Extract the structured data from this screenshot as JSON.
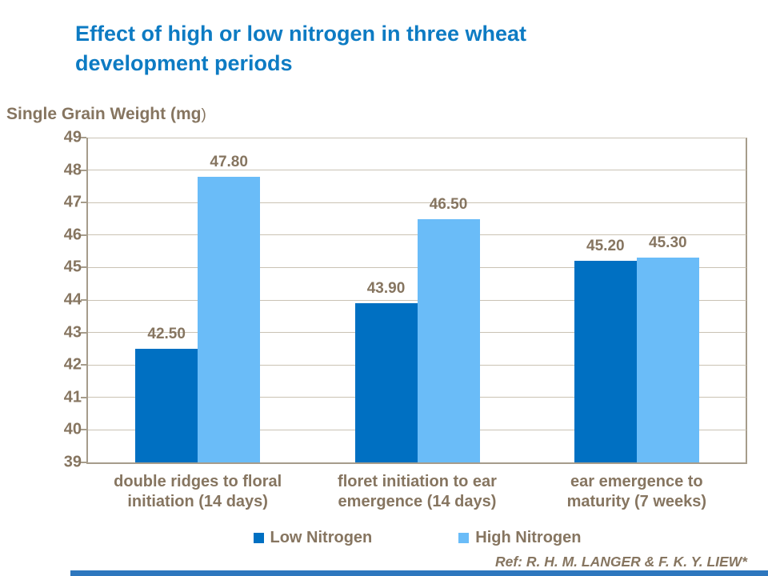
{
  "slide": {
    "title": "Effect of high or low nitrogen in three wheat development periods",
    "footer_ref": "Ref: R. H. M. LANGER & F. K. Y. LIEW*"
  },
  "y_axis": {
    "title_main": "Single Grain Weight (mg",
    "title_close": ")"
  },
  "chart_data": {
    "type": "bar",
    "title": "Effect of high or low nitrogen in three wheat development periods",
    "ylabel": "Single Grain Weight (mg)",
    "xlabel": "",
    "categories": [
      "double ridges to floral initiation (14 days)",
      "floret initiation to ear emergence (14 days)",
      "ear emergence to maturity (7 weeks)"
    ],
    "series": [
      {
        "name": "Low Nitrogen",
        "color": "#0070C2",
        "values": [
          42.5,
          43.9,
          45.2
        ],
        "labels": [
          "42.50",
          "43.90",
          "45.20"
        ]
      },
      {
        "name": "High Nitrogen",
        "color": "#6ABCF8",
        "values": [
          47.8,
          46.5,
          45.3
        ],
        "labels": [
          "47.80",
          "46.50",
          "45.30"
        ]
      }
    ],
    "ylim": [
      39,
      49
    ],
    "ytick_step": 1,
    "yticks": [
      39,
      40,
      41,
      42,
      43,
      44,
      45,
      46,
      47,
      48,
      49
    ],
    "grid": true,
    "legend_position": "bottom"
  },
  "colors": {
    "title_blue": "#0D7BC3",
    "text_brown": "#867560",
    "bar_low": "#0070C2",
    "bar_high": "#6ABCF8",
    "gridline": "#CAC2B4",
    "axis": "#A69C8B",
    "bottom_bar": "#2E77BE",
    "background": "#FFFFFF"
  }
}
